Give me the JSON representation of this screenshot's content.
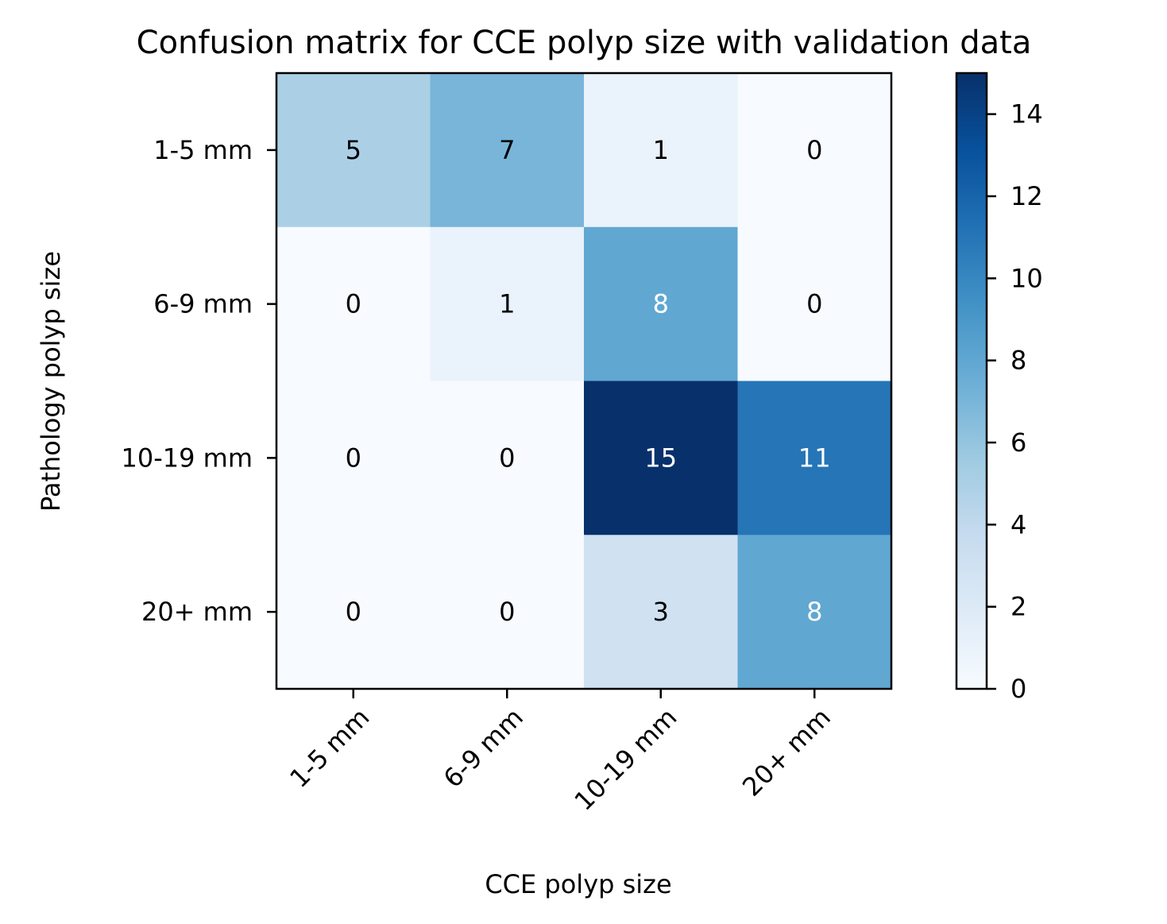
{
  "chart_data": {
    "type": "heatmap",
    "title": "Confusion matrix for CCE polyp size with validation data",
    "xlabel": "CCE polyp size",
    "ylabel": "Pathology polyp size",
    "x_categories": [
      "1-5 mm",
      "6-9 mm",
      "10-19 mm",
      "20+ mm"
    ],
    "y_categories": [
      "1-5 mm",
      "6-9 mm",
      "10-19 mm",
      "20+ mm"
    ],
    "values": [
      [
        5,
        7,
        1,
        0
      ],
      [
        0,
        1,
        8,
        0
      ],
      [
        0,
        0,
        15,
        11
      ],
      [
        0,
        0,
        3,
        8
      ]
    ],
    "colormap": "Blues",
    "colorbar": {
      "min": 0,
      "max": 15,
      "ticks": [
        0,
        2,
        4,
        6,
        8,
        10,
        12,
        14
      ]
    },
    "text_colors": {
      "light": "#ffffff",
      "dark": "#000000"
    },
    "grid": false
  }
}
